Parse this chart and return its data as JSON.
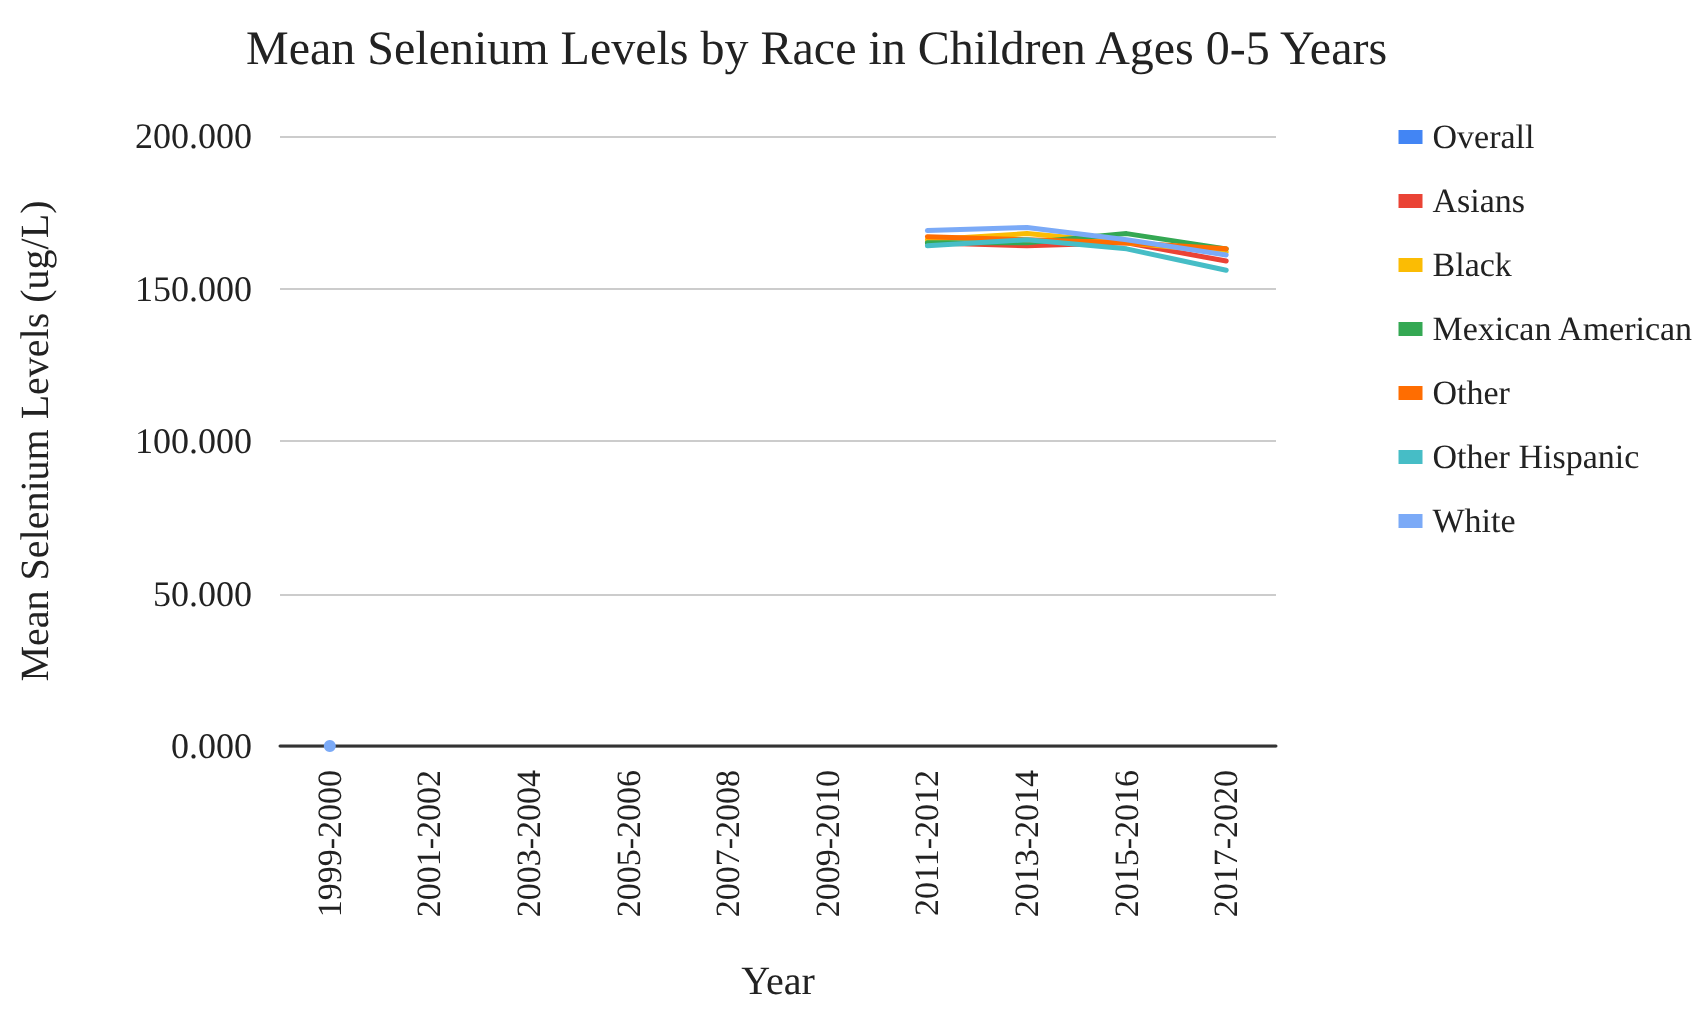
{
  "chart_data": {
    "type": "line",
    "title": "Mean Selenium Levels by Race in Children Ages 0-5 Years",
    "xlabel": "Year",
    "ylabel": "Mean Selenium Levels (ug/L)",
    "categories": [
      "1999-2000",
      "2001-2002",
      "2003-2004",
      "2005-2006",
      "2007-2008",
      "2009-2010",
      "2011-2012",
      "2013-2014",
      "2015-2016",
      "2017-2020"
    ],
    "series": [
      {
        "name": "Overall",
        "color": "#4285f4",
        "values": [
          null,
          null,
          null,
          null,
          null,
          null,
          null,
          null,
          null,
          null
        ]
      },
      {
        "name": "Asians",
        "color": "#ea4335",
        "values": [
          null,
          null,
          null,
          null,
          null,
          null,
          165,
          164,
          165,
          159
        ]
      },
      {
        "name": "Black",
        "color": "#fbbc04",
        "values": [
          null,
          null,
          null,
          null,
          null,
          null,
          166,
          168,
          165,
          162
        ]
      },
      {
        "name": "Mexican American",
        "color": "#34a853",
        "values": [
          null,
          null,
          null,
          null,
          null,
          null,
          165,
          165,
          168,
          163
        ]
      },
      {
        "name": "Other",
        "color": "#ff6d01",
        "values": [
          null,
          null,
          null,
          null,
          null,
          null,
          167,
          166,
          165,
          163
        ]
      },
      {
        "name": "Other Hispanic",
        "color": "#46bdc6",
        "values": [
          null,
          null,
          null,
          null,
          null,
          null,
          164,
          166,
          163,
          156
        ]
      },
      {
        "name": "White",
        "color": "#7baaf7",
        "values": [
          0,
          null,
          null,
          null,
          null,
          null,
          169,
          170,
          166,
          161
        ]
      }
    ],
    "ylim": [
      0,
      200
    ],
    "yticks": [
      {
        "value": 0,
        "label": "0.000"
      },
      {
        "value": 50,
        "label": "50.000"
      },
      {
        "value": 100,
        "label": "100.000"
      },
      {
        "value": 150,
        "label": "150.000"
      },
      {
        "value": 200,
        "label": "200.000"
      }
    ],
    "grid": "y",
    "legend": "right",
    "marker": "none",
    "line_style": "solid"
  }
}
